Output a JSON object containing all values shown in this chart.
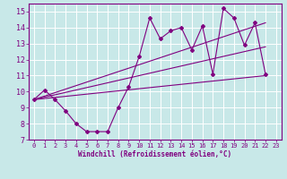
{
  "xlabel": "Windchill (Refroidissement éolien,°C)",
  "bg_color": "#c8e8e8",
  "grid_color": "#ffffff",
  "line_color": "#800080",
  "xlim": [
    -0.5,
    23.5
  ],
  "ylim": [
    7,
    15.5
  ],
  "yticks": [
    7,
    8,
    9,
    10,
    11,
    12,
    13,
    14,
    15
  ],
  "xticks": [
    0,
    1,
    2,
    3,
    4,
    5,
    6,
    7,
    8,
    9,
    10,
    11,
    12,
    13,
    14,
    15,
    16,
    17,
    18,
    19,
    20,
    21,
    22,
    23
  ],
  "main_x": [
    0,
    1,
    2,
    3,
    4,
    5,
    6,
    7,
    8,
    9,
    10,
    11,
    12,
    13,
    14,
    15,
    16,
    17,
    18,
    19,
    20,
    21,
    22
  ],
  "main_y": [
    9.5,
    10.1,
    9.5,
    8.8,
    8.0,
    7.5,
    7.5,
    7.5,
    9.0,
    10.3,
    12.2,
    14.6,
    13.3,
    13.8,
    14.0,
    12.6,
    14.1,
    11.1,
    15.2,
    14.6,
    12.9,
    14.3,
    11.1
  ],
  "trend1_x": [
    0,
    22
  ],
  "trend1_y": [
    9.5,
    11.0
  ],
  "trend2_x": [
    0,
    22
  ],
  "trend2_y": [
    9.5,
    12.8
  ],
  "trend3_x": [
    0,
    22
  ],
  "trend3_y": [
    9.5,
    14.3
  ],
  "tick_fontsize": 5,
  "xlabel_fontsize": 5.5,
  "marker_size": 2.0,
  "line_width": 0.8
}
